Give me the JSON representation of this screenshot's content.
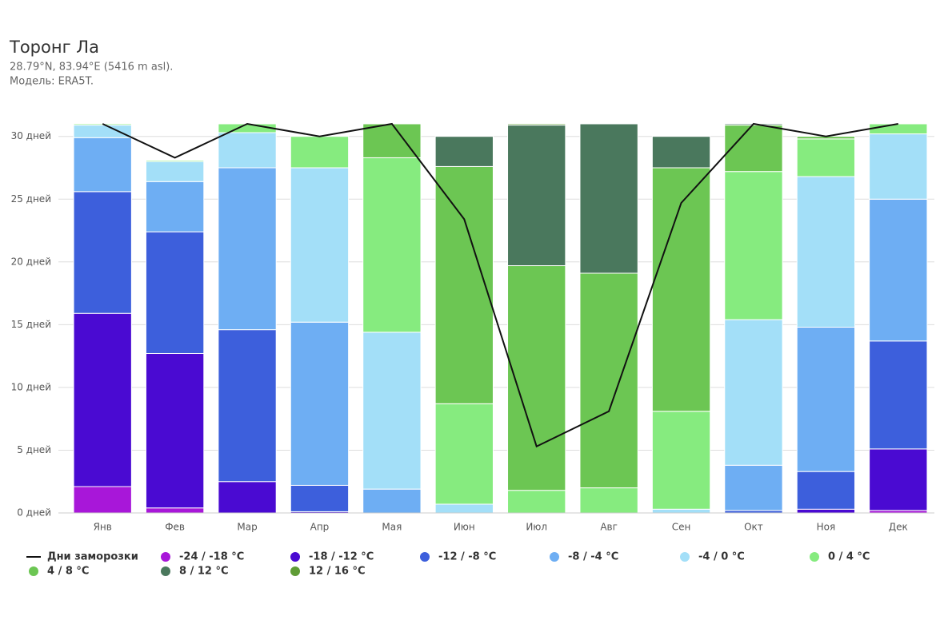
{
  "chart_data": {
    "type": "bar",
    "stacked": true,
    "title": "Торонг Ла",
    "subtitle": [
      "28.79°N, 83.94°E (5416 m asl).",
      "Модель: ERA5T."
    ],
    "categories": [
      "Янв",
      "Фев",
      "Мар",
      "Апр",
      "Мая",
      "Июн",
      "Июл",
      "Авг",
      "Сен",
      "Окт",
      "Ноя",
      "Дек"
    ],
    "ylim": [
      0,
      31
    ],
    "yticks": [
      {
        "value": 0,
        "label": "0 дней"
      },
      {
        "value": 5,
        "label": "5 дней"
      },
      {
        "value": 10,
        "label": "10 дней"
      },
      {
        "value": 15,
        "label": "15 дней"
      },
      {
        "value": 20,
        "label": "20 дней"
      },
      {
        "value": 25,
        "label": "25 дней"
      },
      {
        "value": 30,
        "label": "30 дней"
      }
    ],
    "grid": true,
    "line": {
      "name": "Дни заморозки",
      "color": "#111111",
      "values": [
        31,
        28.3,
        31,
        30,
        31,
        23.4,
        5.3,
        8.1,
        24.7,
        31,
        30,
        31
      ]
    },
    "series": [
      {
        "name": "-24 / -18 °C",
        "color": "#a817d9",
        "values": [
          2.1,
          0.4,
          0,
          0,
          0,
          0,
          0,
          0,
          0,
          0,
          0,
          0.2
        ]
      },
      {
        "name": "-18 / -12 °C",
        "color": "#4a0ad2",
        "values": [
          13.8,
          12.3,
          2.5,
          0.1,
          0,
          0,
          0,
          0,
          0,
          0,
          0.3,
          4.9
        ]
      },
      {
        "name": "-12 / -8 °C",
        "color": "#3d5fdc",
        "values": [
          9.7,
          9.7,
          12.1,
          2.1,
          0,
          0,
          0,
          0,
          0,
          0.2,
          3.0,
          8.6
        ]
      },
      {
        "name": "-8 / -4 °C",
        "color": "#6eaef3",
        "values": [
          4.3,
          4.0,
          12.9,
          13.0,
          1.9,
          0,
          0,
          0,
          0,
          3.6,
          11.5,
          11.3
        ]
      },
      {
        "name": "-4 / 0 °C",
        "color": "#a3dff8",
        "values": [
          1.0,
          1.6,
          2.8,
          12.3,
          12.5,
          0.7,
          0,
          0,
          0.3,
          11.6,
          12.0,
          5.2
        ]
      },
      {
        "name": "0 / 4 °C",
        "color": "#86eb7f",
        "values": [
          0.1,
          0.1,
          0.7,
          2.5,
          13.9,
          8.0,
          1.8,
          2.0,
          7.8,
          11.8,
          3.0,
          0.8
        ]
      },
      {
        "name": "4 / 8 °C",
        "color": "#6cc653",
        "values": [
          0,
          0,
          0,
          0,
          2.7,
          18.9,
          17.9,
          17.1,
          19.4,
          3.7,
          0.2,
          0
        ]
      },
      {
        "name": "8 / 12 °C",
        "color": "#4a785d",
        "values": [
          0,
          0,
          0,
          0,
          0,
          2.4,
          11.2,
          11.9,
          2.5,
          0.1,
          0,
          0
        ]
      },
      {
        "name": "12 / 16 °C",
        "color": "#5f9c36",
        "values": [
          0,
          0,
          0,
          0,
          0,
          0,
          0.1,
          0,
          0,
          0,
          0,
          0
        ]
      }
    ]
  }
}
